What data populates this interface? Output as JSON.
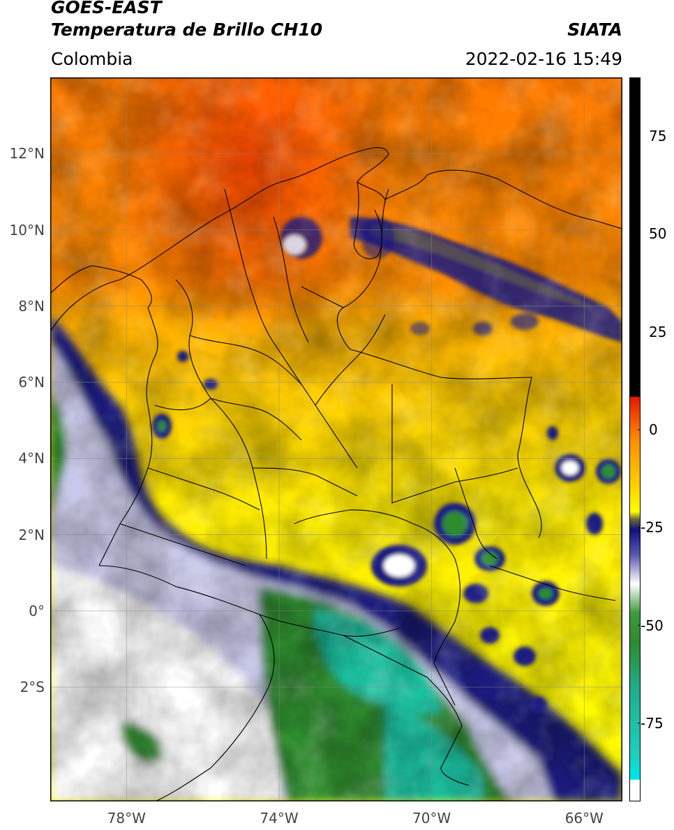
{
  "header": {
    "satellite": "GOES-EAST",
    "product": "Temperatura de Brillo CH10",
    "organization": "SIATA",
    "region": "Colombia",
    "datetime": "2022-02-16 15:49"
  },
  "map": {
    "lat_ticks": [
      "12°N",
      "10°N",
      "8°N",
      "6°N",
      "4°N",
      "2°N",
      "0°",
      "2°S"
    ],
    "lon_ticks": [
      "78°W",
      "74°W",
      "70°W",
      "66°W"
    ],
    "extent": {
      "lon_min": -80,
      "lon_max": -65,
      "lat_min": -5,
      "lat_max": 14
    },
    "gridlines": true
  },
  "colorbar": {
    "ticks": [
      "75",
      "50",
      "25",
      "0",
      "-25",
      "-50",
      "-75"
    ],
    "tick_values": [
      75,
      50,
      25,
      0,
      -25,
      -50,
      -75
    ],
    "range": [
      -95,
      90
    ],
    "colors": {
      "warm_top": "#000000",
      "red": "#e41a00",
      "orange": "#ff8c00",
      "yellow": "#ffff00",
      "olive": "#6b6b3a",
      "navy": "#10107a",
      "white": "#ffffff",
      "green": "#2e8b2e",
      "teal": "#1fc0a0",
      "cyan": "#00e5e5"
    }
  }
}
